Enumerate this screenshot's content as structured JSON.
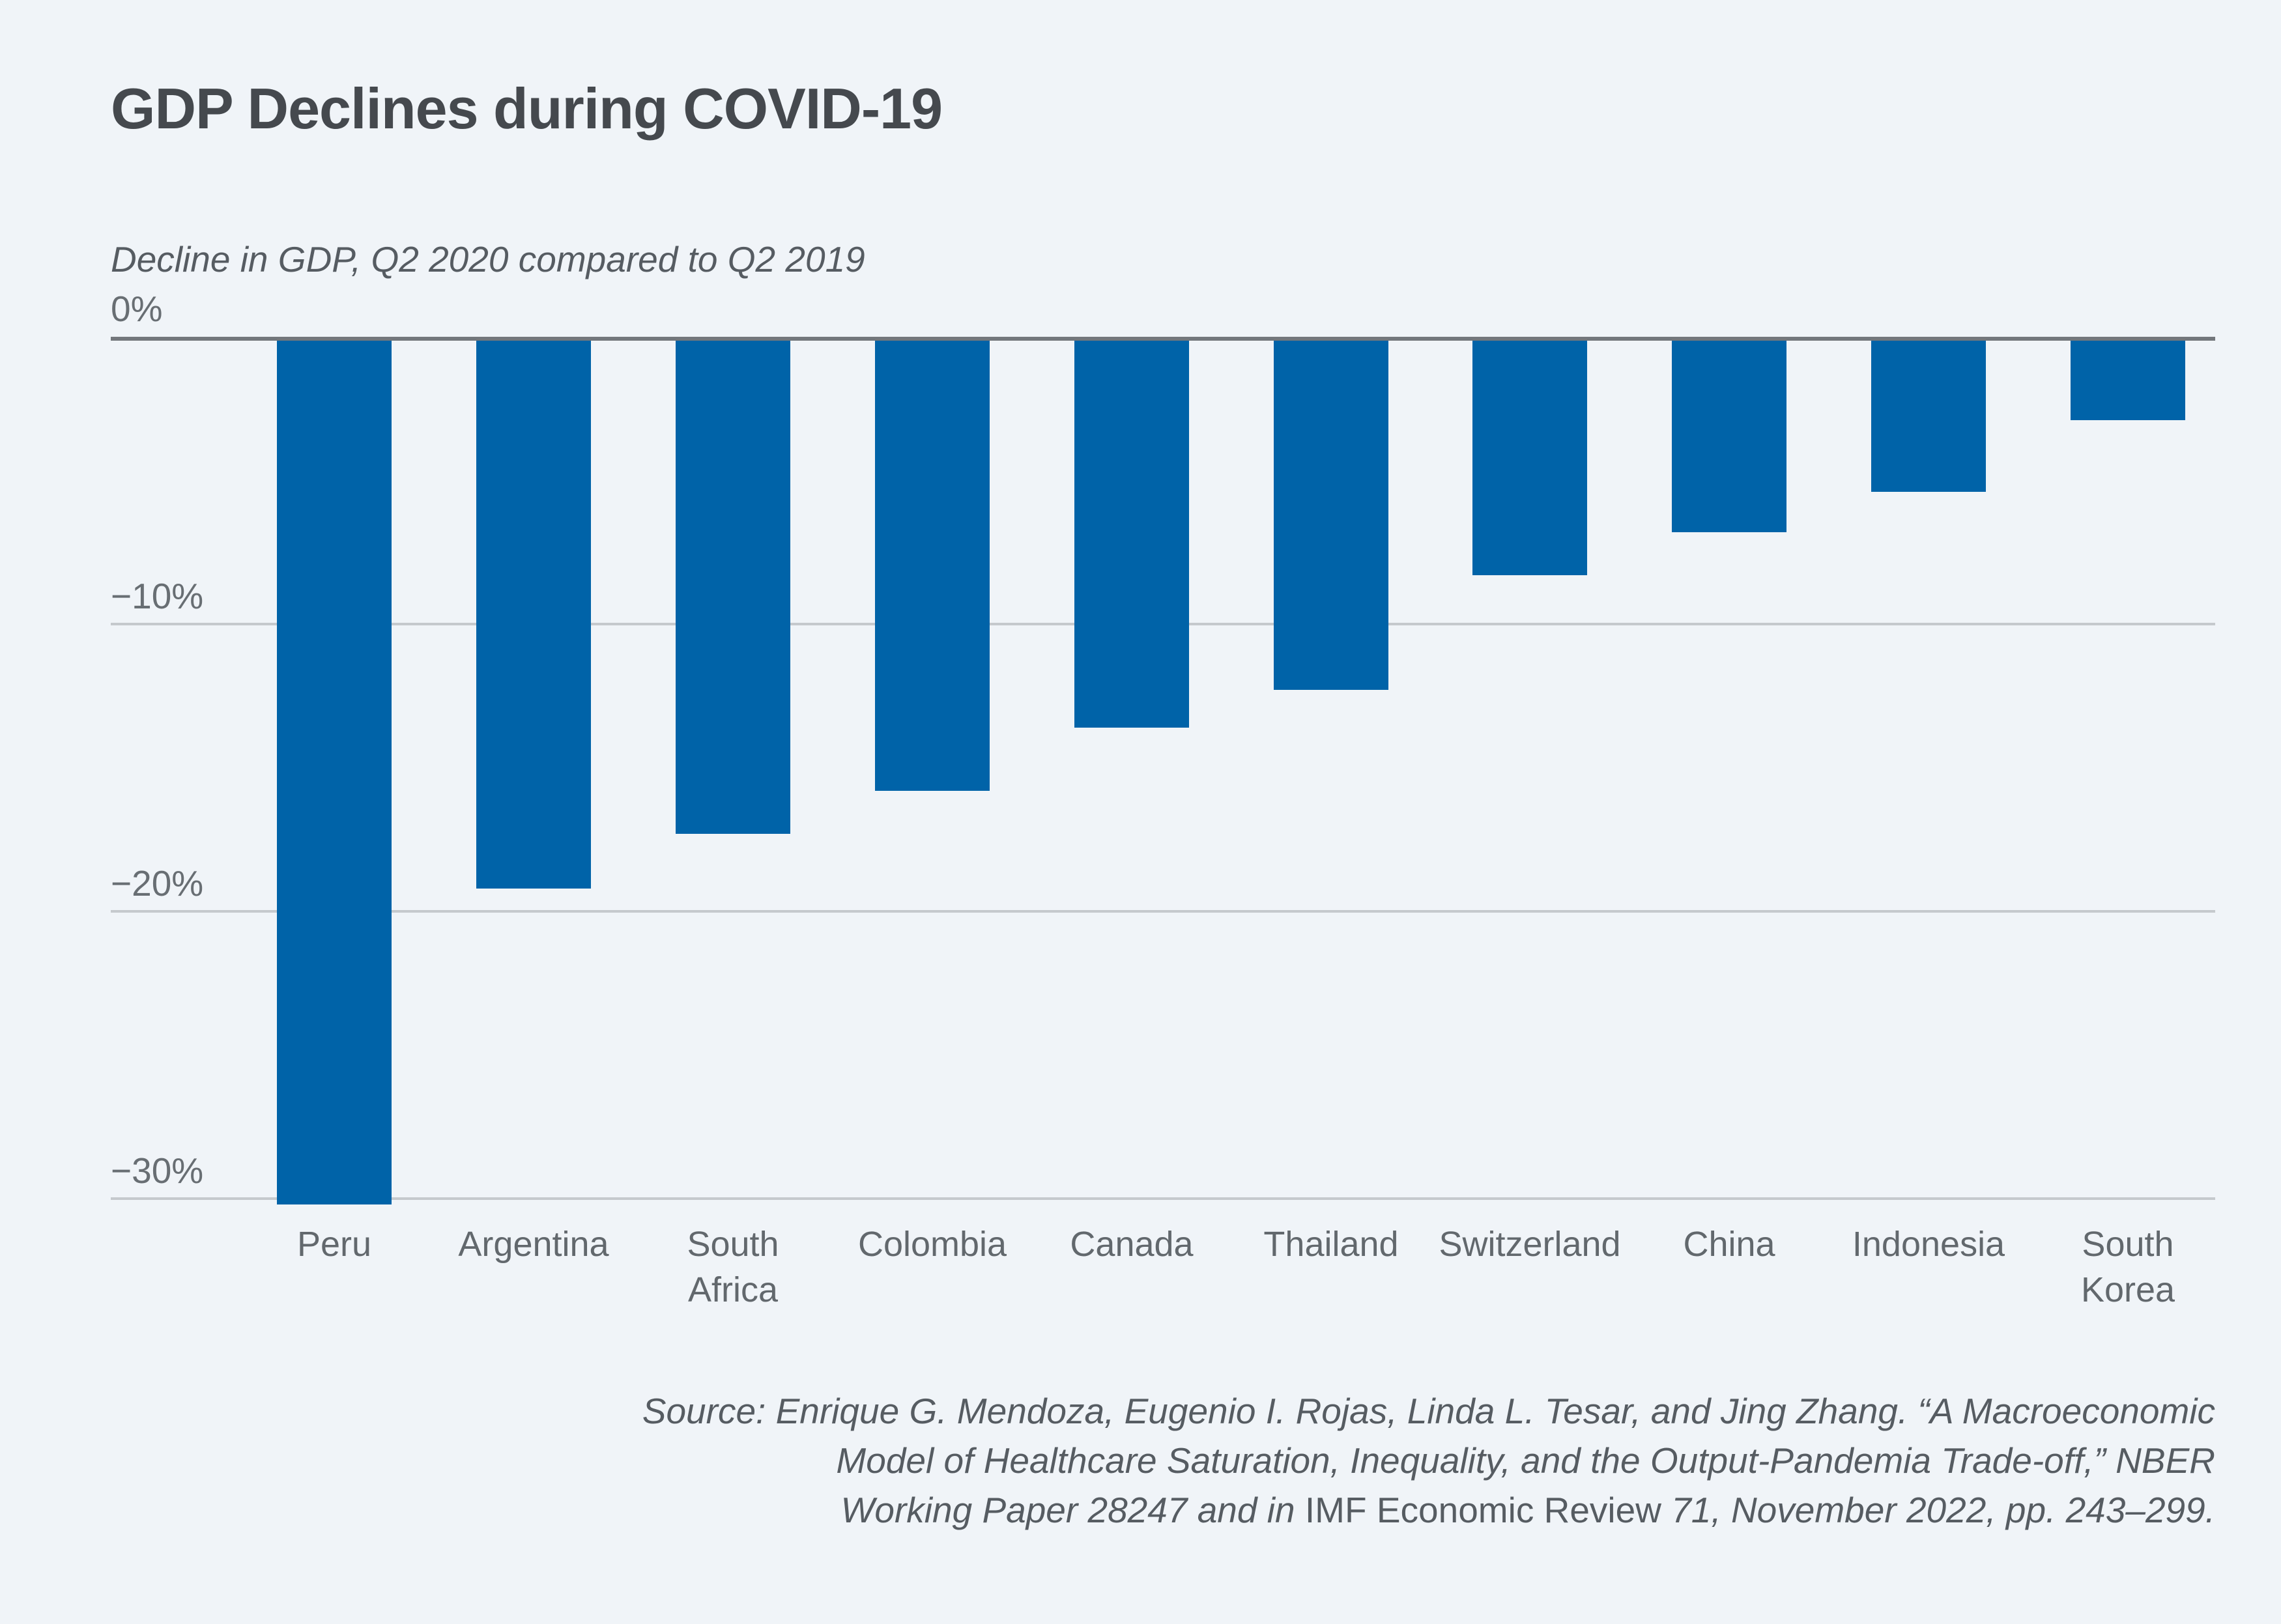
{
  "page": {
    "background_color": "#f0f4f8",
    "accent_color": "#0063a8"
  },
  "header": {
    "title": "GDP Declines during COVID-19",
    "subtitle": "Decline in GDP, Q2 2020 compared to Q2 2019"
  },
  "chart_data": {
    "type": "bar",
    "title": "GDP Declines during COVID-19",
    "subtitle": "Decline in GDP, Q2 2020 compared to Q2 2019",
    "categories": [
      "Peru",
      "Argentina",
      "South Africa",
      "Colombia",
      "Canada",
      "Thailand",
      "Switzerland",
      "China",
      "Indonesia",
      "South Korea"
    ],
    "values": [
      -30.2,
      -19.2,
      -17.3,
      -15.8,
      -13.6,
      -12.3,
      -8.3,
      -6.8,
      -5.4,
      -2.9
    ],
    "unit": "percent",
    "xlabel": "",
    "ylabel": "",
    "ylim": [
      -32,
      0
    ],
    "yticks": [
      0,
      -10,
      -20,
      -30
    ],
    "ytick_labels": [
      "0%",
      "−10%",
      "−20%",
      "−30%"
    ],
    "grid": "horizontal",
    "legend_position": "none",
    "bar_color": "#0063a8"
  },
  "source_note": {
    "line1": "Source: Enrique G. Mendoza, Eugenio I. Rojas, Linda L. Tesar, and Jing Zhang. “A Macroeconomic",
    "line2": "Model of Healthcare Saturation, Inequality, and the Output-Pandemia Trade-off,” NBER",
    "line3_pre": "Working Paper 28247 and in ",
    "line3_journal": "IMF Economic Review",
    "line3_post": " 71, November 2022, pp. 243–299."
  }
}
